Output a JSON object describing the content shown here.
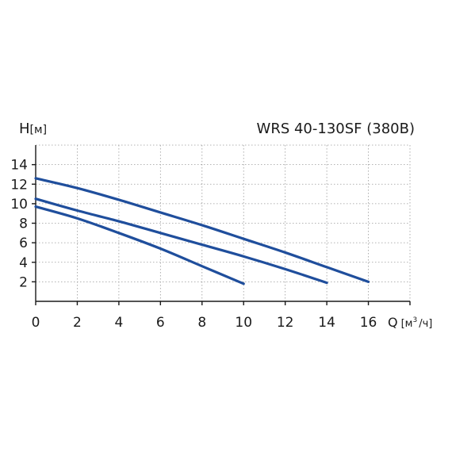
{
  "chart_data": {
    "type": "line",
    "title": "WRS 40-130SF (380В)",
    "ylabel": "H",
    "ylabel_unit": "[м]",
    "xlabel": "Q",
    "xlabel_unit_pre": "[м",
    "xlabel_unit_sup": "3",
    "xlabel_unit_post": "/ч]",
    "xlim": [
      0,
      18
    ],
    "ylim": [
      0,
      16
    ],
    "x_ticks": [
      0,
      2,
      4,
      6,
      8,
      10,
      12,
      14,
      16
    ],
    "y_ticks": [
      2,
      4,
      6,
      8,
      10,
      12,
      14
    ],
    "x_grid": [
      0,
      2,
      4,
      6,
      8,
      10,
      12,
      14,
      16,
      18
    ],
    "y_grid": [
      2,
      4,
      6,
      8,
      10,
      12,
      14,
      16
    ],
    "grid": true,
    "line_color": "#1f4e9c",
    "series": [
      {
        "x": [
          0,
          2,
          4,
          6,
          8,
          10
        ],
        "y": [
          9.7,
          8.5,
          7.0,
          5.4,
          3.6,
          1.8
        ]
      },
      {
        "x": [
          0,
          2,
          4,
          6,
          8,
          10,
          12,
          14
        ],
        "y": [
          10.5,
          9.3,
          8.2,
          7.0,
          5.8,
          4.6,
          3.3,
          1.9
        ]
      },
      {
        "x": [
          0,
          2,
          4,
          6,
          8,
          10,
          12,
          14,
          16
        ],
        "y": [
          12.6,
          11.6,
          10.4,
          9.1,
          7.8,
          6.4,
          5.0,
          3.5,
          2.0
        ]
      }
    ]
  }
}
